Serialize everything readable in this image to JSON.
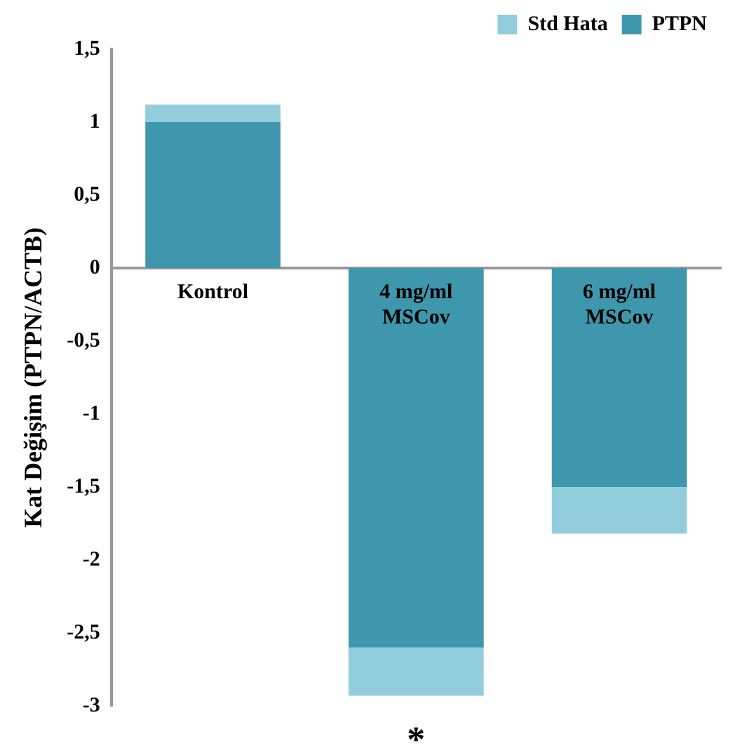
{
  "chart_data": {
    "type": "bar",
    "stacked": true,
    "ylabel": "Kat Değişim (PTPN/ACTB)",
    "categories": [
      "Kontrol",
      "4 mg/ml\nMSCov",
      "6 mg/ml\nMSCov"
    ],
    "series": [
      {
        "name": "PTPN",
        "color": "#3f97ad",
        "values": [
          1.0,
          -2.6,
          -1.5
        ]
      },
      {
        "name": "Std Hata",
        "color": "#92cddc",
        "values": [
          0.12,
          -0.33,
          -0.32
        ]
      }
    ],
    "ylim": [
      -3,
      1.5
    ],
    "yticks": [
      {
        "value": 1.5,
        "label": "1,5"
      },
      1,
      {
        "value": 0.5,
        "label": "0,5"
      },
      0,
      {
        "value": -0.5,
        "label": "-0,5"
      },
      -1,
      {
        "value": -1.5,
        "label": "-1,5"
      },
      -2,
      {
        "value": -2.5,
        "label": "-2,5"
      },
      -3
    ],
    "grid": false,
    "legend": "top right",
    "annotations": [
      "*"
    ]
  }
}
